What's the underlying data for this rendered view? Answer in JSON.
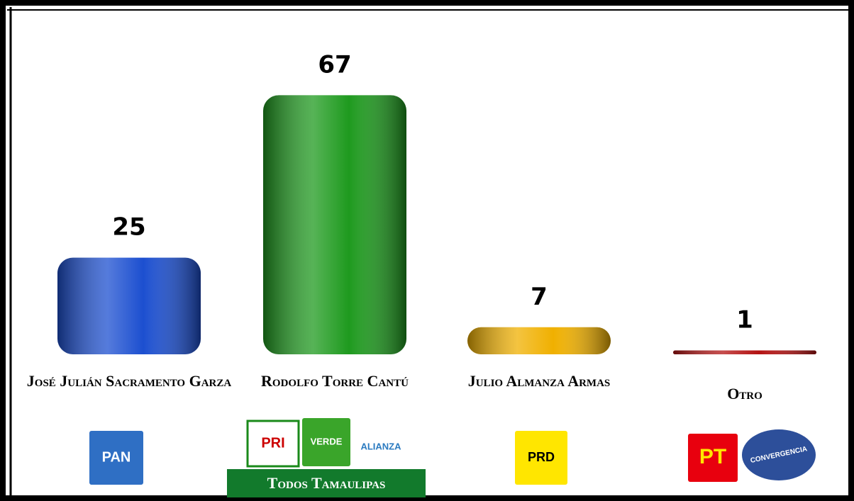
{
  "chart_data": {
    "type": "bar",
    "categories": [
      "José Julián Sacramento Garza",
      "Rodolfo Torre Cantú",
      "Julio Almanza Armas",
      "Otro"
    ],
    "values": [
      25,
      67,
      7,
      1
    ],
    "colors": [
      "#1c4fd0",
      "#1e9a1e",
      "#f0b000",
      "#b31212"
    ],
    "ylim": [
      0,
      70
    ],
    "logos": [
      [
        "PAN"
      ],
      [
        "PRI",
        "VERDE",
        "ALIANZA"
      ],
      [
        "PRD"
      ],
      [
        "PT",
        "CONVERGENCIA"
      ]
    ],
    "coalition_label": "Todos Tamaulipas"
  }
}
